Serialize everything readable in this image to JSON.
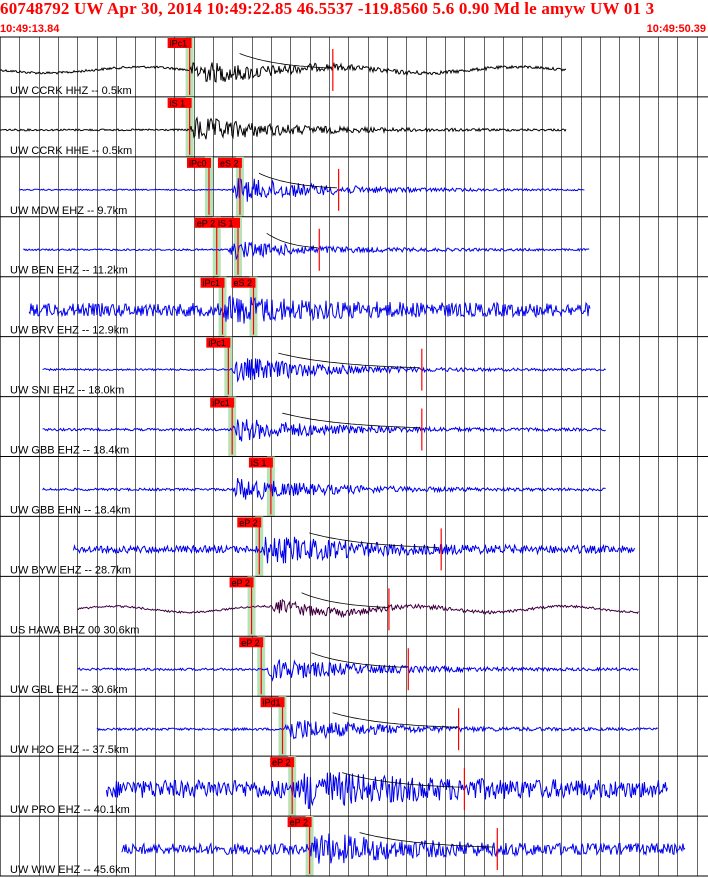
{
  "header": {
    "title": "60748792 UW Apr 30, 2014 10:49:22.85   46.5537 -119.8560  5.6 0.90 Md le amyw UW 01   3",
    "start_time": "10:49:13.84",
    "end_time": "10:49:50.39"
  },
  "colors": {
    "header_text": "#ff0000",
    "grid": "#000000",
    "trace_black": "#000000",
    "trace_blue": "#0000ee",
    "trace_purple": "#400040",
    "pick_box": "#ff0000",
    "pick_band": "#b6e3b6",
    "coda_curve": "#000000",
    "coda_fit": "#ff0000"
  },
  "chart_data": {
    "type": "line",
    "title": "60748792 UW Apr 30, 2014 10:49:22.85   46.5537 -119.8560  5.6 0.90 Md le amyw UW 01   3",
    "xlabel": "",
    "ylabel": "",
    "x_range": [
      "10:49:13.84",
      "10:49:50.39"
    ],
    "grid": "vertical every second",
    "series": [
      {
        "name": "UW CCRK HHZ -- 0.5km",
        "color": "#000000",
        "picks": [
          {
            "label": "iPc1",
            "t": 9.8
          }
        ],
        "coda_end_t": 17.2,
        "trace_start_t": 0.0,
        "trace_end_t": 29.3,
        "amp": 0.4,
        "onset_t": 9.8,
        "noise": 0.04,
        "low_period": 5
      },
      {
        "name": "UW CCRK HHE -- 0.5km",
        "color": "#000000",
        "picks": [
          {
            "label": "iS 1",
            "t": 9.8
          }
        ],
        "coda_end_t": null,
        "trace_start_t": 0.0,
        "trace_end_t": 29.3,
        "amp": 0.45,
        "onset_t": 9.8,
        "noise": 0.03,
        "low_period": 0
      },
      {
        "name": "UW MDW EHZ -- 9.7km",
        "color": "#0000ee",
        "picks": [
          {
            "label": "iPc0",
            "t": 10.8
          },
          {
            "label": "eS 2",
            "t": 12.4
          }
        ],
        "coda_end_t": 17.5,
        "trace_start_t": 1.0,
        "trace_end_t": 30.2,
        "amp": 0.45,
        "onset_t": 12.0,
        "noise": 0.02,
        "low_period": 0
      },
      {
        "name": "UW BEN EHZ -- 11.2km",
        "color": "#0000ee",
        "picks": [
          {
            "label": "eP 2",
            "t": 11.2
          },
          {
            "label": "iS 1",
            "t": 12.3
          }
        ],
        "coda_end_t": 16.5,
        "trace_start_t": 1.2,
        "trace_end_t": 30.5,
        "amp": 0.3,
        "onset_t": 11.8,
        "noise": 0.03,
        "low_period": 0
      },
      {
        "name": "UW BRV EHZ -- 12.9km",
        "color": "#0000ee",
        "picks": [
          {
            "label": "iPc1",
            "t": 11.5
          },
          {
            "label": "eS 2",
            "t": 13.1
          }
        ],
        "coda_end_t": null,
        "trace_start_t": 1.5,
        "trace_end_t": 30.5,
        "amp": 0.35,
        "onset_t": 11.5,
        "noise": 0.22,
        "low_period": 0
      },
      {
        "name": "UW SNI EHZ -- 18.0km",
        "color": "#0000ee",
        "picks": [
          {
            "label": "iPc1",
            "t": 11.8
          }
        ],
        "coda_end_t": 21.8,
        "trace_start_t": 2.2,
        "trace_end_t": 31.3,
        "amp": 0.45,
        "onset_t": 12.0,
        "noise": 0.03,
        "low_period": 0
      },
      {
        "name": "UW GBB EHZ -- 18.4km",
        "color": "#0000ee",
        "picks": [
          {
            "label": "iPc1",
            "t": 12.0
          }
        ],
        "coda_end_t": 21.8,
        "trace_start_t": 2.2,
        "trace_end_t": 31.3,
        "amp": 0.4,
        "onset_t": 12.0,
        "noise": 0.04,
        "low_period": 0
      },
      {
        "name": "UW GBB EHN -- 18.4km",
        "color": "#0000ee",
        "picks": [
          {
            "label": "iS 1",
            "t": 14.0
          }
        ],
        "coda_end_t": null,
        "trace_start_t": 2.2,
        "trace_end_t": 31.3,
        "amp": 0.4,
        "onset_t": 12.0,
        "noise": 0.04,
        "low_period": 0
      },
      {
        "name": "UW BYW EHZ -- 28.7km",
        "color": "#0000ee",
        "picks": [
          {
            "label": "eP 2",
            "t": 13.4
          }
        ],
        "coda_end_t": 22.8,
        "trace_start_t": 3.8,
        "trace_end_t": 32.8,
        "amp": 0.45,
        "onset_t": 13.5,
        "noise": 0.12,
        "low_period": 0
      },
      {
        "name": "US HAWA BHZ 00 30.6km",
        "color": "#400040",
        "picks": [
          {
            "label": "eP 2",
            "t": 13.0
          }
        ],
        "coda_end_t": 20.1,
        "trace_start_t": 4.0,
        "trace_end_t": 33.0,
        "amp": 0.25,
        "onset_t": 14.0,
        "noise": 0.03,
        "low_period": 4
      },
      {
        "name": "UW GBL EHZ -- 30.6km",
        "color": "#0000ee",
        "picks": [
          {
            "label": "eP 2",
            "t": 13.5
          }
        ],
        "coda_end_t": 21.1,
        "trace_start_t": 4.0,
        "trace_end_t": 33.0,
        "amp": 0.4,
        "onset_t": 13.8,
        "noise": 0.04,
        "low_period": 0
      },
      {
        "name": "UW H2O EHZ -- 37.5km",
        "color": "#0000ee",
        "picks": [
          {
            "label": "iPd1",
            "t": 14.6
          }
        ],
        "coda_end_t": 23.7,
        "trace_start_t": 5.0,
        "trace_end_t": 34.0,
        "amp": 0.4,
        "onset_t": 14.6,
        "noise": 0.04,
        "low_period": 0
      },
      {
        "name": "UW PRO EHZ -- 40.1km",
        "color": "#0000ee",
        "picks": [
          {
            "label": "eP 2",
            "t": 15.1
          }
        ],
        "coda_end_t": 24.0,
        "trace_start_t": 5.5,
        "trace_end_t": 34.5,
        "amp": 0.45,
        "onset_t": 15.5,
        "noise": 0.3,
        "low_period": 0
      },
      {
        "name": "UW WIW EHZ -- 45.6km",
        "color": "#0000ee",
        "picks": [
          {
            "label": "eP 2",
            "t": 16.0
          }
        ],
        "coda_end_t": 25.7,
        "trace_start_t": 6.3,
        "trace_end_t": 35.4,
        "amp": 0.45,
        "onset_t": 16.0,
        "noise": 0.18,
        "low_period": 0
      }
    ]
  }
}
